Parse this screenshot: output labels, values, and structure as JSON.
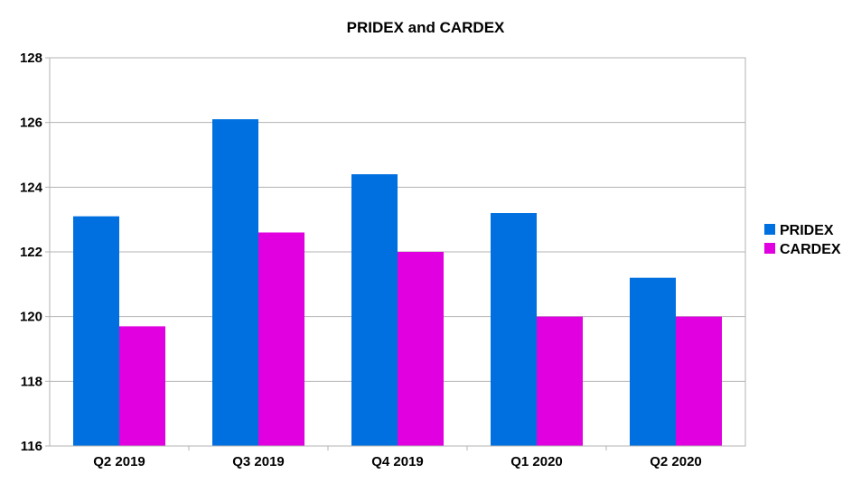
{
  "chart_data": {
    "type": "bar",
    "title": "PRIDEX and CARDEX",
    "xlabel": "",
    "ylabel": "",
    "categories": [
      "Q2 2019",
      "Q3 2019",
      "Q4 2019",
      "Q1 2020",
      "Q2 2020"
    ],
    "series": [
      {
        "name": "PRIDEX",
        "color": "#0070e0",
        "values": [
          123.1,
          126.1,
          124.4,
          123.2,
          121.2
        ]
      },
      {
        "name": "CARDEX",
        "color": "#e000e0",
        "values": [
          119.7,
          122.6,
          122.0,
          120.0,
          120.0
        ]
      }
    ],
    "ylim": [
      116,
      128
    ],
    "yticks": [
      116,
      118,
      120,
      122,
      124,
      126,
      128
    ],
    "grid": true,
    "legend_position": "right"
  }
}
